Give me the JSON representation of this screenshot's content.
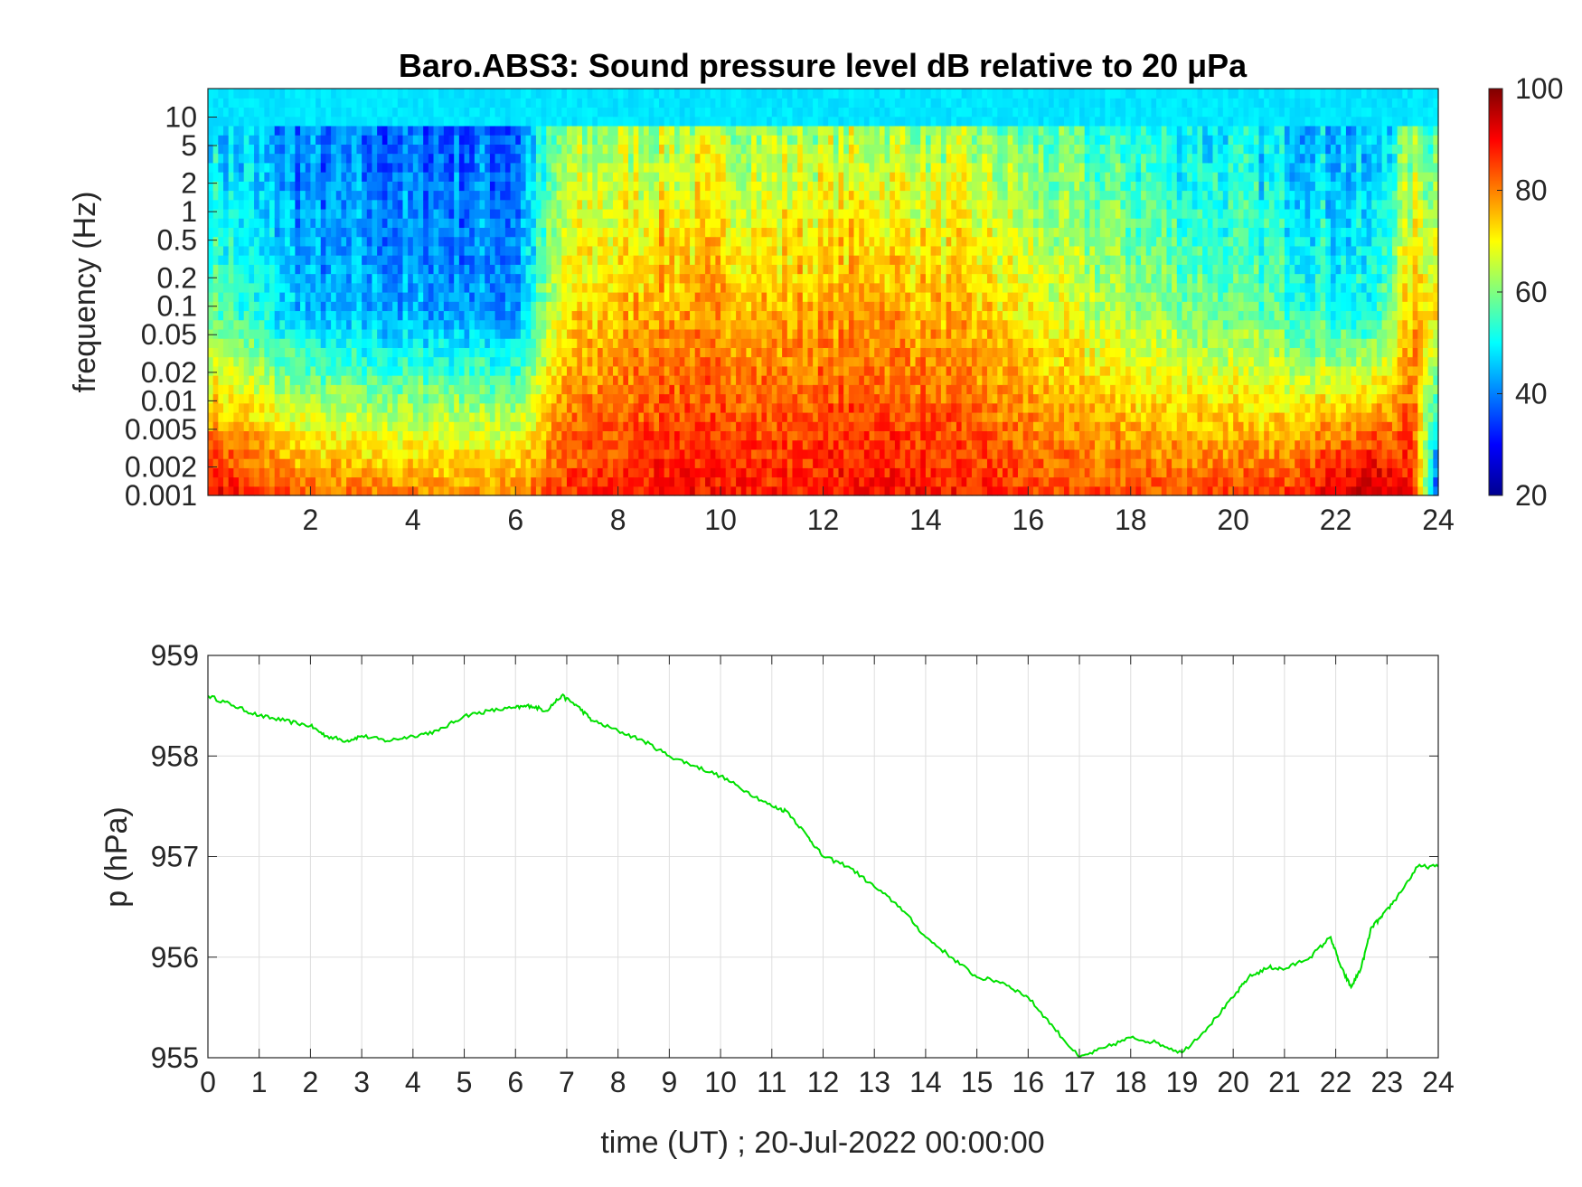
{
  "chart_data": [
    {
      "type": "heatmap",
      "title": "Baro.ABS3: Sound pressure level dB relative to 20 μPa",
      "ylabel": "frequency (Hz)",
      "xlabel": "",
      "xlim": [
        0,
        24
      ],
      "ylim": [
        0.001,
        20
      ],
      "yscale": "log",
      "x_ticks": [
        "2",
        "4",
        "6",
        "8",
        "10",
        "12",
        "14",
        "16",
        "18",
        "20",
        "22",
        "24"
      ],
      "y_ticks": [
        "0.001",
        "0.002",
        "0.005",
        "0.01",
        "0.02",
        "0.05",
        "0.1",
        "0.2",
        "0.5",
        "1",
        "2",
        "5",
        "10"
      ],
      "colorbar": {
        "range": [
          20,
          100
        ],
        "ticks": [
          "20",
          "40",
          "60",
          "80",
          "100"
        ],
        "colormap": "jet"
      },
      "approx_level_by_hour": [
        {
          "hour": 0,
          "low_freq_dB": 92,
          "mid_freq_dB": 58,
          "high_freq_dB": 45
        },
        {
          "hour": 2,
          "low_freq_dB": 82,
          "mid_freq_dB": 44,
          "high_freq_dB": 38
        },
        {
          "hour": 4,
          "low_freq_dB": 80,
          "mid_freq_dB": 43,
          "high_freq_dB": 37
        },
        {
          "hour": 6,
          "low_freq_dB": 80,
          "mid_freq_dB": 42,
          "high_freq_dB": 37
        },
        {
          "hour": 7,
          "low_freq_dB": 86,
          "mid_freq_dB": 72,
          "high_freq_dB": 58
        },
        {
          "hour": 9,
          "low_freq_dB": 90,
          "mid_freq_dB": 78,
          "high_freq_dB": 62
        },
        {
          "hour": 11,
          "low_freq_dB": 88,
          "mid_freq_dB": 76,
          "high_freq_dB": 60
        },
        {
          "hour": 13,
          "low_freq_dB": 90,
          "mid_freq_dB": 78,
          "high_freq_dB": 62
        },
        {
          "hour": 15,
          "low_freq_dB": 88,
          "mid_freq_dB": 74,
          "high_freq_dB": 58
        },
        {
          "hour": 17,
          "low_freq_dB": 84,
          "mid_freq_dB": 66,
          "high_freq_dB": 52
        },
        {
          "hour": 19,
          "low_freq_dB": 84,
          "mid_freq_dB": 60,
          "high_freq_dB": 48
        },
        {
          "hour": 21,
          "low_freq_dB": 86,
          "mid_freq_dB": 56,
          "high_freq_dB": 45
        },
        {
          "hour": 22.7,
          "low_freq_dB": 98,
          "mid_freq_dB": 50,
          "high_freq_dB": 42
        },
        {
          "hour": 23.5,
          "low_freq_dB": 88,
          "mid_freq_dB": 76,
          "high_freq_dB": 56
        },
        {
          "hour": 24,
          "low_freq_dB": 30,
          "mid_freq_dB": 72,
          "high_freq_dB": 52
        }
      ]
    },
    {
      "type": "line",
      "title": "",
      "xlabel": "time (UT) ; 20-Jul-2022 00:00:00",
      "ylabel": "p (hPa)",
      "xlim": [
        0,
        24
      ],
      "ylim": [
        955,
        959
      ],
      "grid": true,
      "x_ticks": [
        "0",
        "1",
        "2",
        "3",
        "4",
        "5",
        "6",
        "7",
        "8",
        "9",
        "10",
        "11",
        "12",
        "13",
        "14",
        "15",
        "16",
        "17",
        "18",
        "19",
        "20",
        "21",
        "22",
        "23",
        "24"
      ],
      "y_ticks": [
        "955",
        "956",
        "957",
        "958",
        "959"
      ],
      "series": [
        {
          "color": "#00e000",
          "x": [
            0,
            0.5,
            1,
            1.5,
            2,
            2.3,
            2.7,
            3,
            3.5,
            4,
            4.5,
            5,
            5.5,
            6,
            6.3,
            6.6,
            6.9,
            7.2,
            7.5,
            8,
            8.5,
            9,
            9.5,
            10,
            10.5,
            11,
            11.3,
            11.7,
            12,
            12.5,
            13,
            13.5,
            14,
            14.5,
            15,
            15.5,
            16,
            16.5,
            17,
            17.5,
            18,
            18.5,
            19,
            19.5,
            20,
            20.3,
            20.7,
            21,
            21.5,
            21.9,
            22.1,
            22.3,
            22.5,
            22.7,
            22.9,
            23.2,
            23.6,
            24
          ],
          "y": [
            958.6,
            958.5,
            958.4,
            958.35,
            958.3,
            958.2,
            958.15,
            958.2,
            958.15,
            958.2,
            958.25,
            958.4,
            958.45,
            958.48,
            958.5,
            958.45,
            958.6,
            958.5,
            958.35,
            958.25,
            958.15,
            958.0,
            957.9,
            957.8,
            957.65,
            957.5,
            957.45,
            957.2,
            957.0,
            956.9,
            956.7,
            956.5,
            956.2,
            956.0,
            955.8,
            955.75,
            955.6,
            955.3,
            955.0,
            955.1,
            955.2,
            955.15,
            955.05,
            955.3,
            955.6,
            955.8,
            955.9,
            955.88,
            956.0,
            956.2,
            955.9,
            955.7,
            955.9,
            956.3,
            956.4,
            956.6,
            956.9,
            956.9
          ]
        }
      ]
    }
  ]
}
